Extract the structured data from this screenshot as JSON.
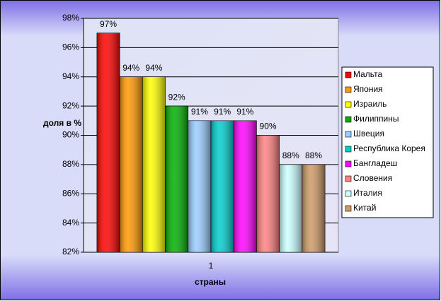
{
  "chart_data": {
    "type": "bar",
    "y_label": "доля в %",
    "x_label": "страны",
    "categories": [
      "1"
    ],
    "series": [
      {
        "name": "Мальта",
        "color": "#ff0000",
        "values": [
          97
        ],
        "value_labels": [
          "97%"
        ]
      },
      {
        "name": "Япония",
        "color": "#ff9900",
        "values": [
          94
        ],
        "value_labels": [
          "94%"
        ]
      },
      {
        "name": "Израиль",
        "color": "#ffff00",
        "values": [
          94
        ],
        "value_labels": [
          "94%"
        ]
      },
      {
        "name": "Филиппины",
        "color": "#00b000",
        "values": [
          92
        ],
        "value_labels": [
          "92%"
        ]
      },
      {
        "name": "Швеция",
        "color": "#99ccff",
        "values": [
          91
        ],
        "value_labels": [
          "91%"
        ]
      },
      {
        "name": "Республика Корея",
        "color": "#00cccc",
        "values": [
          91
        ],
        "value_labels": [
          "91%"
        ]
      },
      {
        "name": "Бангладеш",
        "color": "#ff00ff",
        "values": [
          91
        ],
        "value_labels": [
          "91%"
        ]
      },
      {
        "name": "Словения",
        "color": "#ff8080",
        "values": [
          90
        ],
        "value_labels": [
          "90%"
        ]
      },
      {
        "name": "Италия",
        "color": "#ccffff",
        "values": [
          88
        ],
        "value_labels": [
          "88%"
        ]
      },
      {
        "name": "Китай",
        "color": "#cc9966",
        "values": [
          88
        ],
        "value_labels": [
          "88%"
        ]
      }
    ],
    "ylim": [
      82,
      98
    ],
    "yticks": [
      {
        "value": 82,
        "label": "82%"
      },
      {
        "value": 84,
        "label": "84%"
      },
      {
        "value": 86,
        "label": "86%"
      },
      {
        "value": 88,
        "label": "88%"
      },
      {
        "value": 90,
        "label": "90%"
      },
      {
        "value": 92,
        "label": "92%"
      },
      {
        "value": 94,
        "label": "94%"
      },
      {
        "value": 96,
        "label": "96%"
      },
      {
        "value": 98,
        "label": "98%"
      }
    ],
    "grid": true,
    "legend": "right"
  }
}
